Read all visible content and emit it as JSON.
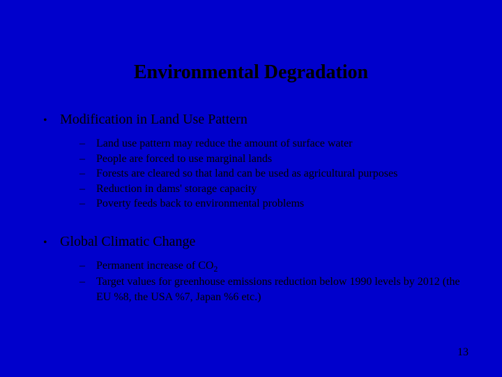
{
  "background_color": "#0000cc",
  "text_color": "#000000",
  "font_family": "Times New Roman",
  "title": "Environmental Degradation",
  "title_fontsize": 28,
  "main_fontsize": 20,
  "sub_fontsize": 16,
  "sections": [
    {
      "main": "Modification in Land Use Pattern",
      "subs": [
        "Land use pattern may reduce the amount of surface water",
        "People are forced to use marginal lands",
        "Forests are cleared so that land can be used as agricultural purposes",
        "Reduction in dams' storage capacity",
        "Poverty feeds back to environmental problems"
      ]
    },
    {
      "main": "Global Climatic Change",
      "subs": [
        "Permanent increase of CO<sub>2</sub>",
        "Target values for greenhouse emissions reduction below 1990 levels by 2012 (the EU %8, the USA %7, Japan %6 etc.)"
      ]
    }
  ],
  "page_number": "13"
}
